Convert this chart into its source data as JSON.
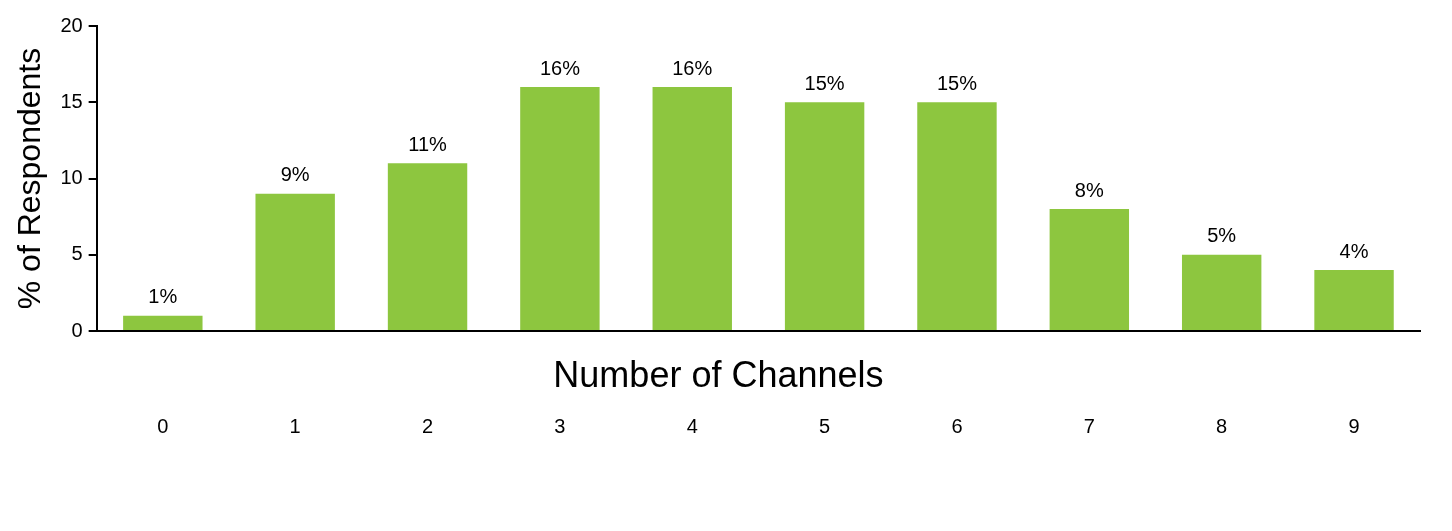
{
  "chart_data": {
    "type": "bar",
    "xlabel": "Number of Channels",
    "ylabel": "% of Respondents",
    "categories": [
      "0",
      "1",
      "2",
      "3",
      "4",
      "5",
      "6",
      "7",
      "8",
      "9"
    ],
    "values": [
      1,
      9,
      11,
      16,
      16,
      15,
      15,
      8,
      5,
      4
    ],
    "value_labels": [
      "1%",
      "9%",
      "11%",
      "16%",
      "16%",
      "15%",
      "15%",
      "8%",
      "5%",
      "4%"
    ],
    "color": "#8dc63f",
    "ylim": [
      0,
      20
    ],
    "yticks": [
      0,
      5,
      10,
      15,
      20
    ],
    "grid": false,
    "legend": false
  }
}
